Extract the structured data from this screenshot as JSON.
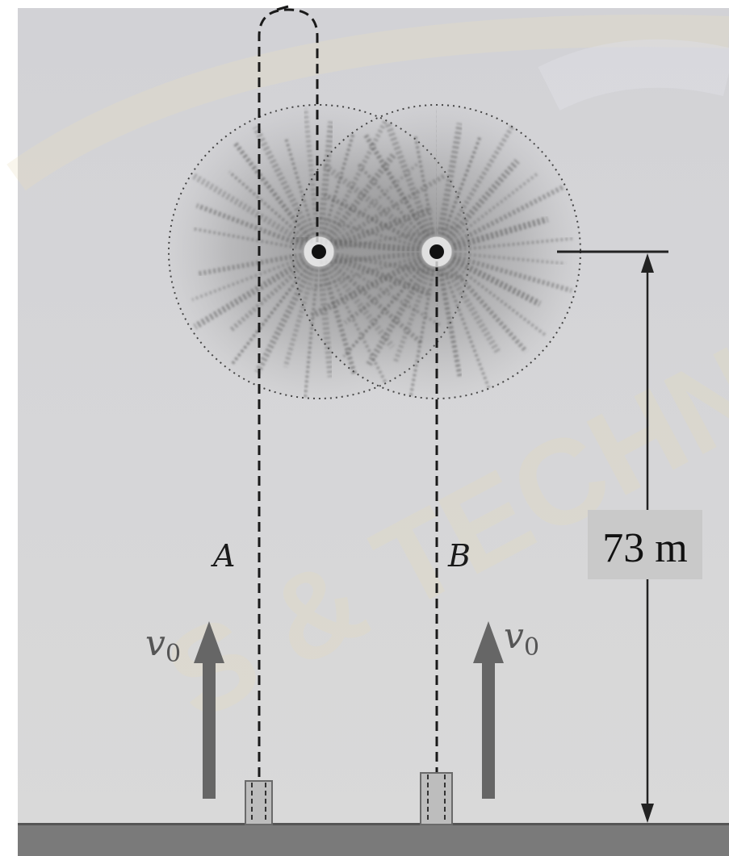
{
  "labels": {
    "rocket_a": "A",
    "rocket_b": "B",
    "velocity_a": "v",
    "velocity_a_sub": "0",
    "velocity_b": "v",
    "velocity_b_sub": "0",
    "height": "73 m"
  },
  "watermark": {
    "text": "S & TECHNOLOGY"
  },
  "colors": {
    "background": "#d6d6d6",
    "ground": "#7a7a7a",
    "arrow": "#666666",
    "watermark": "#e6dcb4",
    "burst": "#555555"
  }
}
